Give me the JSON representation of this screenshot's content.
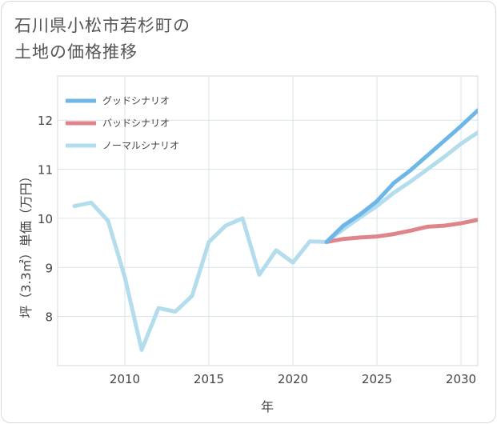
{
  "title": "石川県小松市若杉町の\n土地の価格推移",
  "chart_data": {
    "type": "line",
    "xlabel": "年",
    "ylabel": "坪（3.3㎡）単価（万円）",
    "xlim": [
      2006,
      2031
    ],
    "ylim": [
      7,
      12.9
    ],
    "x_ticks": [
      2010,
      2015,
      2020,
      2025,
      2030
    ],
    "y_ticks": [
      8,
      9,
      10,
      11,
      12
    ],
    "grid": true,
    "legend_position": "top-left",
    "series": [
      {
        "name": "グッドシナリオ",
        "color": "#6cb6e8",
        "x": [
          2022,
          2023,
          2024,
          2025,
          2026,
          2027,
          2028,
          2029,
          2030,
          2031
        ],
        "y": [
          9.52,
          9.85,
          10.08,
          10.35,
          10.72,
          10.98,
          11.28,
          11.58,
          11.88,
          12.2
        ]
      },
      {
        "name": "バッドシナリオ",
        "color": "#e0848c",
        "x": [
          2022,
          2023,
          2024,
          2025,
          2026,
          2027,
          2028,
          2029,
          2030,
          2031
        ],
        "y": [
          9.52,
          9.58,
          9.61,
          9.63,
          9.68,
          9.75,
          9.83,
          9.85,
          9.9,
          9.97
        ]
      },
      {
        "name": "ノーマルシナリオ",
        "color": "#b3dcec",
        "x": [
          2007,
          2008,
          2009,
          2010,
          2011,
          2012,
          2013,
          2014,
          2015,
          2016,
          2017,
          2018,
          2019,
          2020,
          2021,
          2022,
          2023,
          2024,
          2025,
          2026,
          2027,
          2028,
          2029,
          2030,
          2031
        ],
        "y": [
          10.25,
          10.32,
          9.95,
          8.8,
          7.32,
          8.17,
          8.1,
          8.42,
          9.52,
          9.85,
          10.0,
          8.85,
          9.35,
          9.1,
          9.53,
          9.52,
          9.78,
          10.02,
          10.25,
          10.52,
          10.75,
          11.0,
          11.25,
          11.52,
          11.75
        ]
      }
    ]
  }
}
